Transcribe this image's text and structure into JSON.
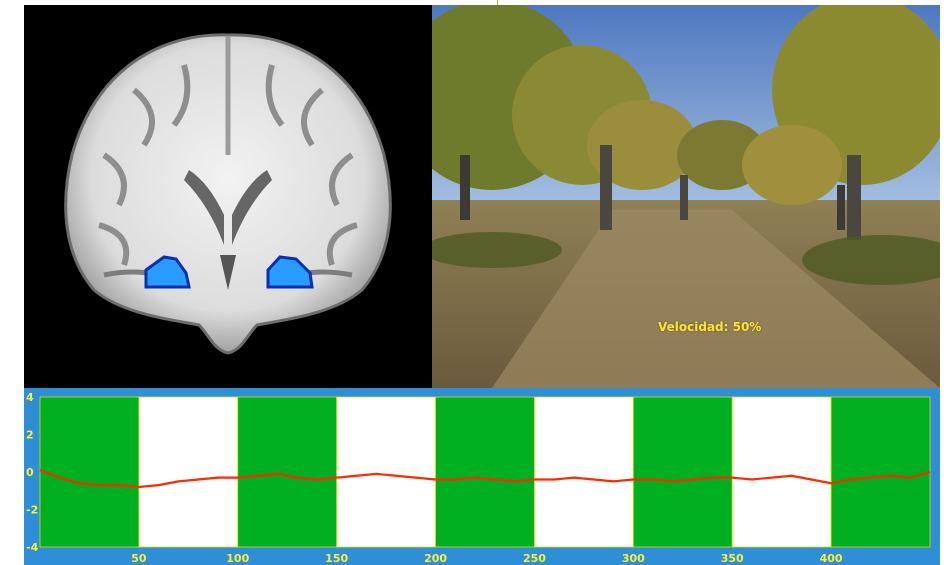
{
  "brain_view": {
    "image_alt": "Coronal MRI slice with two activation clusters",
    "activation_color": "#2a9cff"
  },
  "vr_scene": {
    "speed_label": "Velocidad: 50%"
  },
  "chart_data": {
    "type": "line",
    "background_color": "#2f8fd6",
    "block_colors": {
      "active": "#00b020",
      "rest": "#ffffff"
    },
    "blocks": [
      {
        "start": 0,
        "end": 50,
        "state": "active"
      },
      {
        "start": 50,
        "end": 100,
        "state": "rest"
      },
      {
        "start": 100,
        "end": 150,
        "state": "active"
      },
      {
        "start": 150,
        "end": 200,
        "state": "rest"
      },
      {
        "start": 200,
        "end": 250,
        "state": "active"
      },
      {
        "start": 250,
        "end": 300,
        "state": "rest"
      },
      {
        "start": 300,
        "end": 350,
        "state": "active"
      },
      {
        "start": 350,
        "end": 400,
        "state": "rest"
      },
      {
        "start": 400,
        "end": 450,
        "state": "active"
      }
    ],
    "xlim": [
      0,
      450
    ],
    "ylim": [
      -4,
      4
    ],
    "x_ticks": [
      "50",
      "100",
      "150",
      "200",
      "250",
      "300",
      "350",
      "400"
    ],
    "y_ticks": [
      "4",
      "2",
      "0",
      "-2",
      "-4"
    ],
    "series": [
      {
        "color": "#ff2a00",
        "x": [
          0,
          10,
          20,
          30,
          40,
          50,
          60,
          70,
          80,
          90,
          100,
          110,
          120,
          130,
          140,
          150,
          160,
          170,
          180,
          190,
          200,
          210,
          220,
          230,
          240,
          250,
          260,
          270,
          280,
          290,
          300,
          310,
          320,
          330,
          340,
          350,
          360,
          370,
          380,
          390,
          400,
          410,
          420,
          430,
          440,
          450
        ],
        "values": [
          0.1,
          -0.3,
          -0.6,
          -0.7,
          -0.7,
          -0.8,
          -0.7,
          -0.5,
          -0.4,
          -0.3,
          -0.3,
          -0.2,
          -0.1,
          -0.3,
          -0.4,
          -0.3,
          -0.2,
          -0.1,
          -0.2,
          -0.3,
          -0.4,
          -0.4,
          -0.3,
          -0.4,
          -0.5,
          -0.4,
          -0.4,
          -0.3,
          -0.4,
          -0.5,
          -0.4,
          -0.4,
          -0.5,
          -0.4,
          -0.3,
          -0.3,
          -0.4,
          -0.3,
          -0.2,
          -0.4,
          -0.6,
          -0.4,
          -0.3,
          -0.2,
          -0.3,
          0.0
        ]
      }
    ]
  }
}
